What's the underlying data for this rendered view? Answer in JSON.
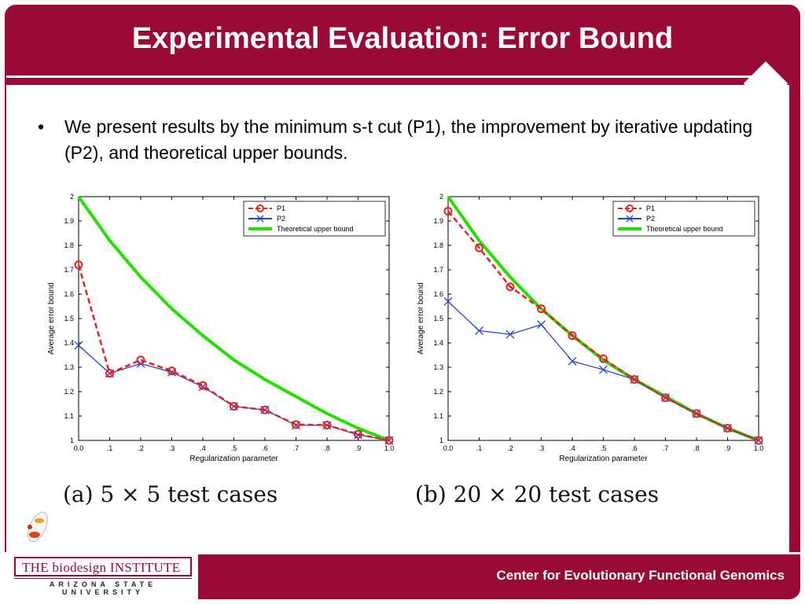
{
  "slide": {
    "title": "Experimental Evaluation: Error Bound",
    "bullet": "We present results by the minimum s-t cut (P1), the improvement by iterative updating (P2), and theoretical upper bounds.",
    "footer_right": "Center for Evolutionary Functional Genomics",
    "logo_main": "THE biodesign INSTITUTE",
    "logo_sub": "ARIZONA STATE UNIVERSITY",
    "caption_a": "(a) 5 × 5 test cases",
    "caption_b": "(b) 20 × 20 test cases",
    "brand_color": "#9a0a37"
  },
  "chart_data": [
    {
      "type": "line",
      "xlabel": "Regularization parameter",
      "ylabel": "Average error bound",
      "x": [
        0.0,
        0.1,
        0.2,
        0.3,
        0.4,
        0.5,
        0.6,
        0.7,
        0.8,
        0.9,
        1.0
      ],
      "xtick_labels": [
        "0.0",
        ".1",
        ".2",
        ".3",
        ".4",
        ".5",
        ".6",
        ".7",
        ".8",
        ".9",
        "1.0"
      ],
      "ytick_labels": [
        "1",
        "1.1",
        "1.2",
        "1.3",
        "1.4",
        "1.5",
        "1.6",
        "1.7",
        "1.8",
        "1.9",
        "2"
      ],
      "xlim": [
        0,
        1
      ],
      "ylim": [
        1,
        2
      ],
      "grid": false,
      "legend_position": "top-right",
      "series": [
        {
          "name": "P1",
          "color": "#e8211c",
          "style": "dashed",
          "marker": "circle",
          "values": [
            1.72,
            1.275,
            1.33,
            1.285,
            1.225,
            1.14,
            1.125,
            1.065,
            1.063,
            1.025,
            1.0
          ]
        },
        {
          "name": "P2",
          "color": "#2a3fd6",
          "style": "solid",
          "marker": "x",
          "values": [
            1.39,
            1.275,
            1.315,
            1.28,
            1.22,
            1.14,
            1.125,
            1.062,
            1.062,
            1.023,
            1.0
          ]
        },
        {
          "name": "Theoretical upper bound",
          "color": "#22e000",
          "style": "solid",
          "marker": "none",
          "values": [
            2.0,
            1.82,
            1.67,
            1.54,
            1.43,
            1.33,
            1.25,
            1.18,
            1.11,
            1.05,
            1.0
          ]
        }
      ]
    },
    {
      "type": "line",
      "xlabel": "Regularization parameter",
      "ylabel": "Average error bound",
      "x": [
        0.0,
        0.1,
        0.2,
        0.3,
        0.4,
        0.5,
        0.6,
        0.7,
        0.8,
        0.9,
        1.0
      ],
      "xtick_labels": [
        "0.0",
        ".1",
        ".2",
        ".3",
        ".4",
        ".5",
        ".6",
        ".7",
        ".8",
        ".9",
        "1.0"
      ],
      "ytick_labels": [
        "1",
        "1.1",
        "1.2",
        "1.3",
        "1.4",
        "1.5",
        "1.6",
        "1.7",
        "1.8",
        "1.9",
        "2"
      ],
      "xlim": [
        0,
        1
      ],
      "ylim": [
        1,
        2
      ],
      "grid": false,
      "legend_position": "top-right",
      "series": [
        {
          "name": "P1",
          "color": "#e8211c",
          "style": "dashed",
          "marker": "circle",
          "values": [
            1.94,
            1.79,
            1.63,
            1.54,
            1.43,
            1.335,
            1.25,
            1.175,
            1.11,
            1.05,
            1.0
          ]
        },
        {
          "name": "P2",
          "color": "#2a3fd6",
          "style": "solid",
          "marker": "x",
          "values": [
            1.57,
            1.45,
            1.435,
            1.475,
            1.325,
            1.29,
            1.25,
            1.175,
            1.11,
            1.05,
            1.0
          ]
        },
        {
          "name": "Theoretical upper bound",
          "color": "#22e000",
          "style": "solid",
          "marker": "none",
          "values": [
            2.0,
            1.82,
            1.67,
            1.54,
            1.43,
            1.33,
            1.25,
            1.18,
            1.11,
            1.05,
            1.0
          ]
        }
      ]
    }
  ]
}
